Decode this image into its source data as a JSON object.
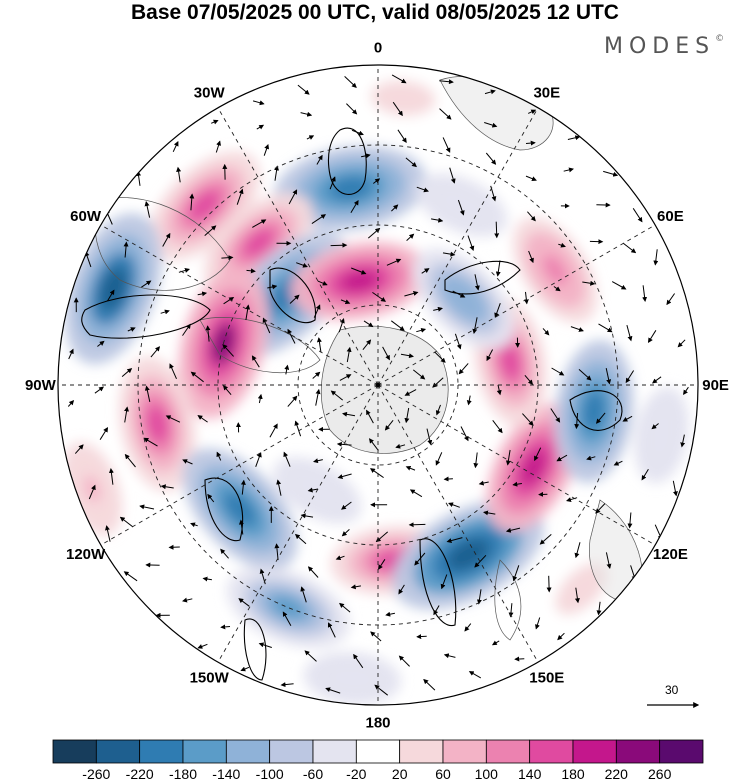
{
  "title": "Base 07/05/2025 00 UTC, valid 08/05/2025 12 UTC",
  "brand": "MODES",
  "brand_mark": "©",
  "longitude_labels": [
    {
      "text": "0",
      "lon": 0
    },
    {
      "text": "30E",
      "lon": 30
    },
    {
      "text": "60E",
      "lon": 60
    },
    {
      "text": "90E",
      "lon": 90
    },
    {
      "text": "120E",
      "lon": 120
    },
    {
      "text": "150E",
      "lon": 150
    },
    {
      "text": "180",
      "lon": 180
    },
    {
      "text": "150W",
      "lon": -150
    },
    {
      "text": "120W",
      "lon": -120
    },
    {
      "text": "90W",
      "lon": -90
    },
    {
      "text": "60W",
      "lon": -60
    },
    {
      "text": "30W",
      "lon": -30
    }
  ],
  "reference_vector": {
    "label": "30",
    "icon": "arrow-right-icon"
  },
  "colorbar": {
    "levels": [
      "-260",
      "-220",
      "-180",
      "-140",
      "-100",
      "-60",
      "-20",
      "20",
      "60",
      "100",
      "140",
      "180",
      "220",
      "260"
    ],
    "colors": [
      "#173d5c",
      "#1e5f8f",
      "#2f7cb2",
      "#5b9cc8",
      "#8fb2d8",
      "#bcc7e2",
      "#e4e4f0",
      "#ffffff",
      "#f6d9dc",
      "#f3b3c6",
      "#ec82b0",
      "#e04aa0",
      "#c4178c",
      "#8a0a7a",
      "#5a0a6e"
    ]
  },
  "anomaly_cells": [
    {
      "lon": -8,
      "colat": 0.62,
      "value": -220
    },
    {
      "lon": -44,
      "colat": 0.78,
      "value": 170
    },
    {
      "lon": -40,
      "colat": 0.58,
      "value": 150
    },
    {
      "lon": -70,
      "colat": 0.88,
      "value": -230
    },
    {
      "lon": -45,
      "colat": 0.4,
      "value": -220
    },
    {
      "lon": -10,
      "colat": 0.33,
      "value": 180
    },
    {
      "lon": -75,
      "colat": 0.5,
      "value": 220
    },
    {
      "lon": -100,
      "colat": 0.7,
      "value": 170
    },
    {
      "lon": -132,
      "colat": 0.58,
      "value": -200
    },
    {
      "lon": -158,
      "colat": 0.75,
      "value": -150
    },
    {
      "lon": -150,
      "colat": 0.38,
      "value": -60
    },
    {
      "lon": 175,
      "colat": 0.55,
      "value": 140
    },
    {
      "lon": 152,
      "colat": 0.6,
      "value": -250
    },
    {
      "lon": 118,
      "colat": 0.55,
      "value": 180
    },
    {
      "lon": 97,
      "colat": 0.68,
      "value": -190
    },
    {
      "lon": 80,
      "colat": 0.42,
      "value": 150
    },
    {
      "lon": 45,
      "colat": 0.38,
      "value": -140
    },
    {
      "lon": 57,
      "colat": 0.66,
      "value": 120
    },
    {
      "lon": 25,
      "colat": 0.62,
      "value": -60
    },
    {
      "lon": 100,
      "colat": 0.9,
      "value": -60
    },
    {
      "lon": -110,
      "colat": 0.95,
      "value": 60
    },
    {
      "lon": 5,
      "colat": 0.9,
      "value": 40
    },
    {
      "lon": 135,
      "colat": 0.9,
      "value": 40
    },
    {
      "lon": -175,
      "colat": 0.92,
      "value": -60
    }
  ]
}
